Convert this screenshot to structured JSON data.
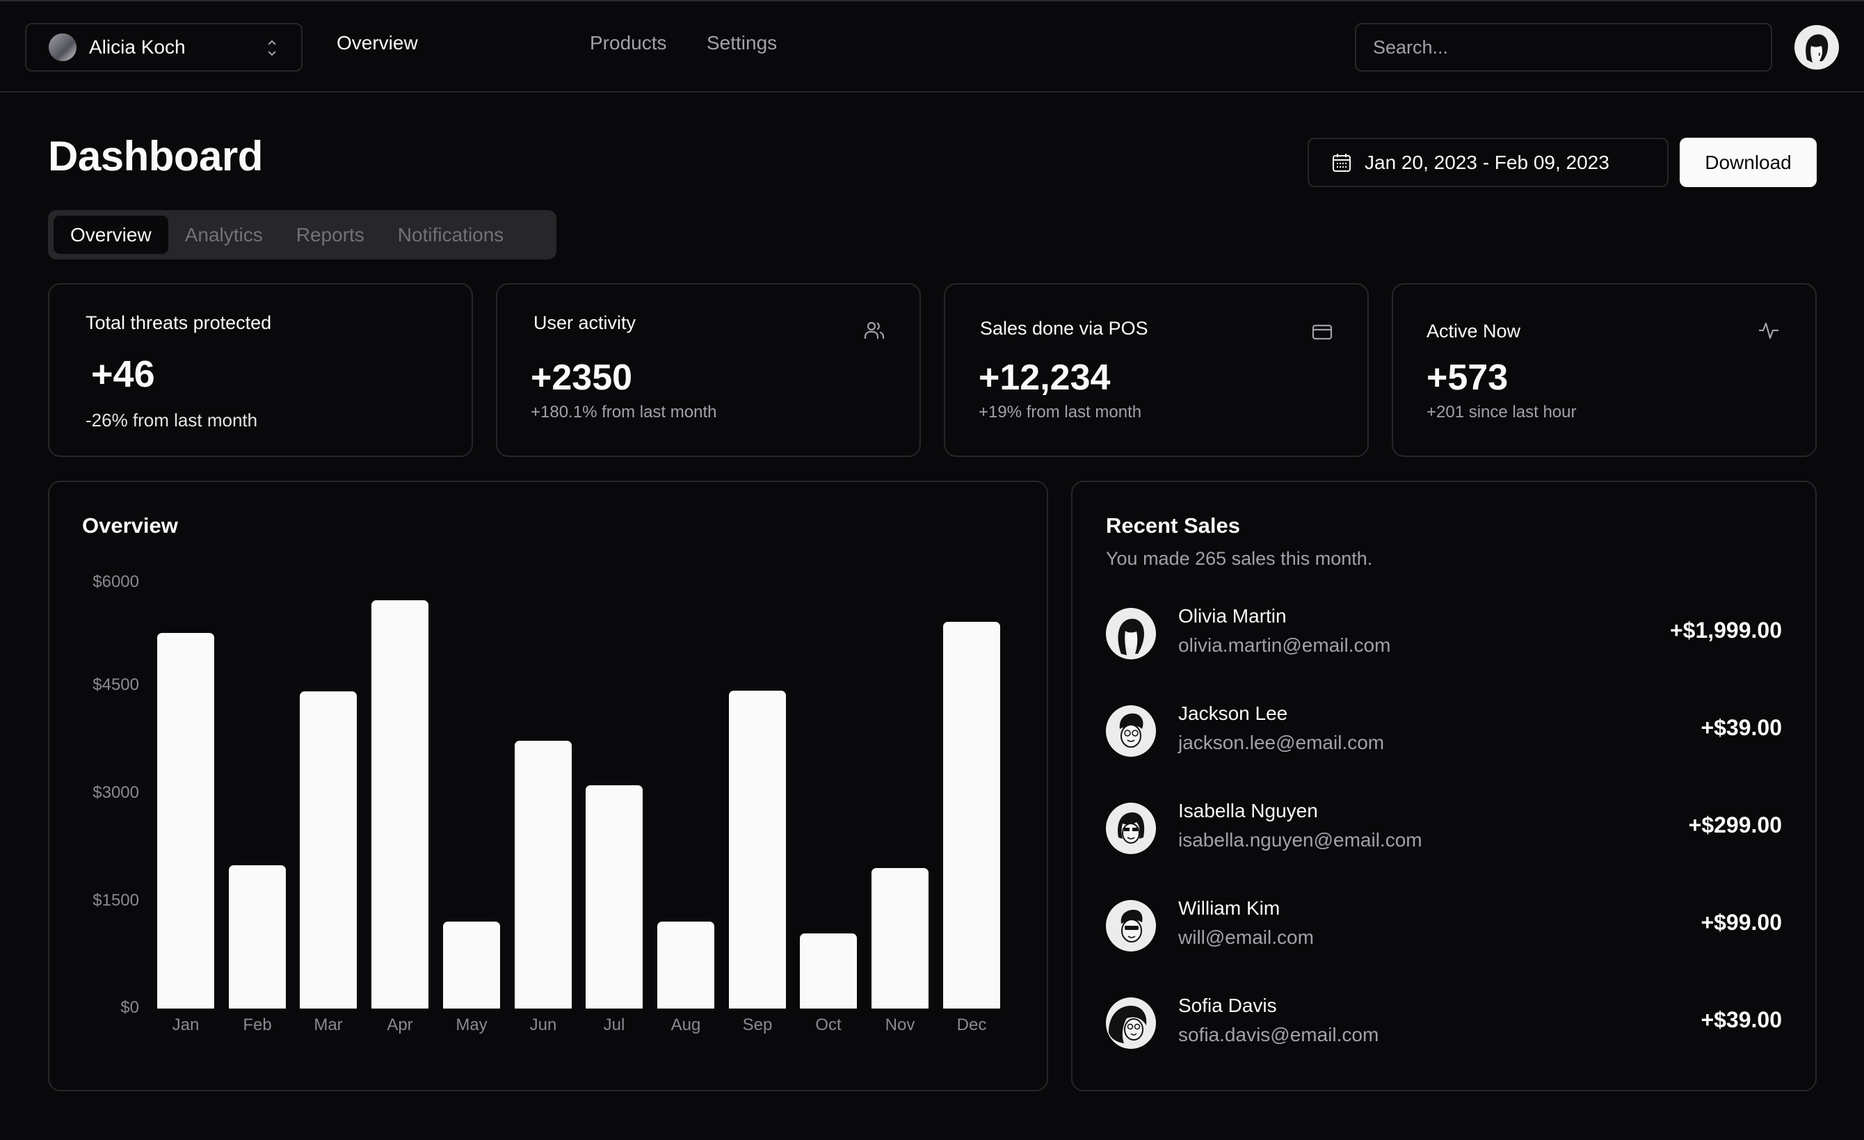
{
  "nav": {
    "team_name": "Alicia Koch",
    "links": [
      {
        "label": "Overview",
        "active": true
      },
      {
        "label": "Products",
        "active": false
      },
      {
        "label": "Settings",
        "active": false
      }
    ],
    "search_placeholder": "Search..."
  },
  "header": {
    "title": "Dashboard",
    "date_range": "Jan 20, 2023 - Feb 09, 2023",
    "download_label": "Download"
  },
  "tabs": [
    {
      "label": "Overview",
      "active": true
    },
    {
      "label": "Analytics",
      "active": false
    },
    {
      "label": "Reports",
      "active": false
    },
    {
      "label": "Notifications",
      "active": false
    }
  ],
  "stats": [
    {
      "title": "Total threats protected",
      "value": "+46",
      "sub": "-26% from last month",
      "icon": "none"
    },
    {
      "title": "User activity",
      "value": "+2350",
      "sub": "+180.1% from last month",
      "icon": "users-icon"
    },
    {
      "title": "Sales done via POS",
      "value": "+12,234",
      "sub": "+19% from last month",
      "icon": "credit-card-icon"
    },
    {
      "title": "Active Now",
      "value": "+573",
      "sub": "+201 since last hour",
      "icon": "activity-icon"
    }
  ],
  "overview": {
    "title": "Overview"
  },
  "chart_data": {
    "type": "bar",
    "title": "Overview",
    "categories": [
      "Jan",
      "Feb",
      "Mar",
      "Apr",
      "May",
      "Jun",
      "Jul",
      "Aug",
      "Sep",
      "Oct",
      "Nov",
      "Dec"
    ],
    "values": [
      5290,
      2020,
      4470,
      5750,
      1230,
      3770,
      3150,
      1230,
      4480,
      1060,
      1980,
      5450
    ],
    "yticks": [
      "$6000",
      "$4500",
      "$3000",
      "$1500",
      "$0"
    ],
    "xlabel": "",
    "ylabel": "",
    "ylim": [
      0,
      6000
    ],
    "grid": false,
    "legend": "none",
    "bar_color": "#fafafa"
  },
  "recent_sales": {
    "title": "Recent Sales",
    "subtitle": "You made 265 sales this month.",
    "items": [
      {
        "name": "Olivia Martin",
        "email": "olivia.martin@email.com",
        "amount": "+$1,999.00"
      },
      {
        "name": "Jackson Lee",
        "email": "jackson.lee@email.com",
        "amount": "+$39.00"
      },
      {
        "name": "Isabella Nguyen",
        "email": "isabella.nguyen@email.com",
        "amount": "+$299.00"
      },
      {
        "name": "William Kim",
        "email": "will@email.com",
        "amount": "+$99.00"
      },
      {
        "name": "Sofia Davis",
        "email": "sofia.davis@email.com",
        "amount": "+$39.00"
      }
    ]
  },
  "colors": {
    "background": "#09090b",
    "border": "#27272a",
    "foreground": "#fafafa",
    "muted": "#a1a1aa",
    "tab_bg": "#27272a"
  }
}
